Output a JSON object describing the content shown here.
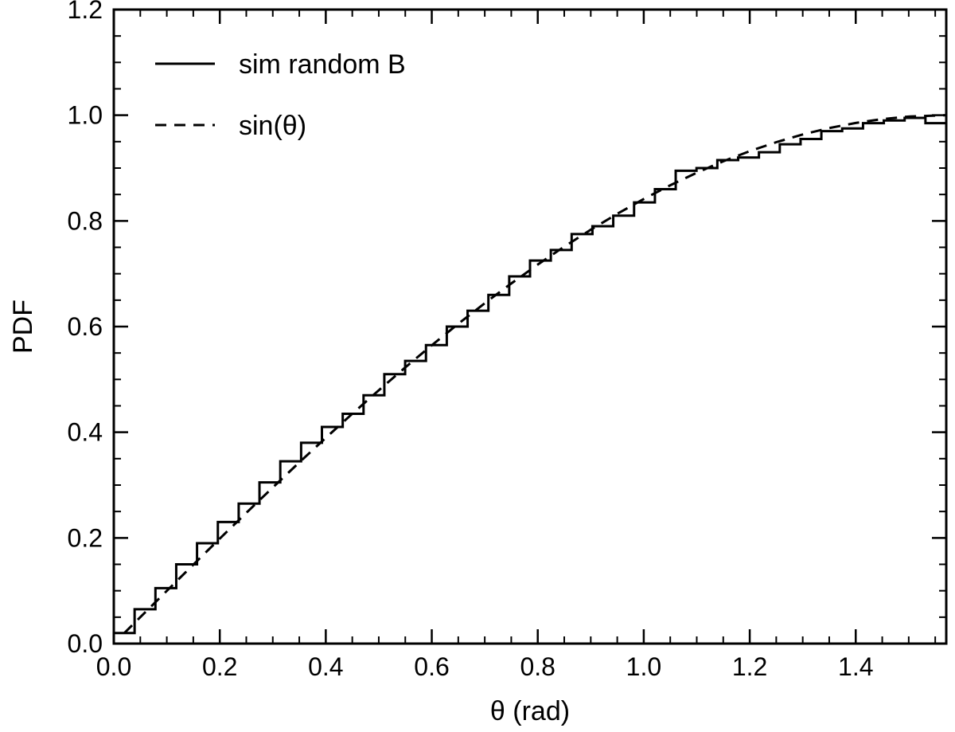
{
  "chart_data": {
    "type": "line",
    "title": "",
    "xlabel": "θ (rad)",
    "ylabel": "PDF",
    "xlim": [
      0.0,
      1.5708
    ],
    "ylim": [
      0.0,
      1.2
    ],
    "x_ticks": [
      "0.0",
      "0.2",
      "0.4",
      "0.6",
      "0.8",
      "1.0",
      "1.2",
      "1.4"
    ],
    "y_ticks": [
      "0.0",
      "0.2",
      "0.4",
      "0.6",
      "0.8",
      "1.0",
      "1.2"
    ],
    "grid": false,
    "legend_position": "top-left",
    "series": [
      {
        "name": "sim random B",
        "style": "solid-step",
        "color": "#000000",
        "bin_width": 0.03927,
        "x": [
          0.0196,
          0.0589,
          0.0982,
          0.1374,
          0.1767,
          0.216,
          0.2553,
          0.2945,
          0.3338,
          0.3731,
          0.4123,
          0.4516,
          0.4909,
          0.5301,
          0.5694,
          0.6087,
          0.648,
          0.6872,
          0.7265,
          0.7658,
          0.805,
          0.8443,
          0.8836,
          0.9228,
          0.9621,
          1.0014,
          1.0407,
          1.0799,
          1.1192,
          1.1585,
          1.1977,
          1.237,
          1.2763,
          1.3155,
          1.3548,
          1.3941,
          1.4334,
          1.4726,
          1.5119,
          1.5512
        ],
        "y": [
          0.02,
          0.065,
          0.105,
          0.15,
          0.19,
          0.23,
          0.265,
          0.305,
          0.345,
          0.38,
          0.41,
          0.435,
          0.47,
          0.51,
          0.535,
          0.565,
          0.6,
          0.63,
          0.66,
          0.695,
          0.725,
          0.745,
          0.775,
          0.79,
          0.81,
          0.835,
          0.86,
          0.895,
          0.9,
          0.915,
          0.92,
          0.93,
          0.945,
          0.955,
          0.97,
          0.975,
          0.985,
          0.99,
          0.995,
          0.985
        ]
      },
      {
        "name": "sin(θ)",
        "style": "dashed",
        "color": "#000000",
        "x": [
          0.0196,
          0.05,
          0.1,
          0.15,
          0.2,
          0.25,
          0.3,
          0.35,
          0.4,
          0.45,
          0.5,
          0.55,
          0.6,
          0.65,
          0.7,
          0.75,
          0.8,
          0.85,
          0.9,
          0.95,
          1.0,
          1.05,
          1.1,
          1.15,
          1.2,
          1.25,
          1.3,
          1.35,
          1.4,
          1.45,
          1.5,
          1.5708
        ],
        "y": [
          0.0196,
          0.05,
          0.0998,
          0.1494,
          0.1987,
          0.2474,
          0.2955,
          0.3429,
          0.3894,
          0.435,
          0.4794,
          0.5227,
          0.5646,
          0.6052,
          0.6442,
          0.6816,
          0.7174,
          0.7513,
          0.7833,
          0.8134,
          0.8415,
          0.8674,
          0.8912,
          0.9128,
          0.932,
          0.949,
          0.9636,
          0.9757,
          0.9854,
          0.9927,
          0.9975,
          1.0
        ]
      }
    ]
  }
}
